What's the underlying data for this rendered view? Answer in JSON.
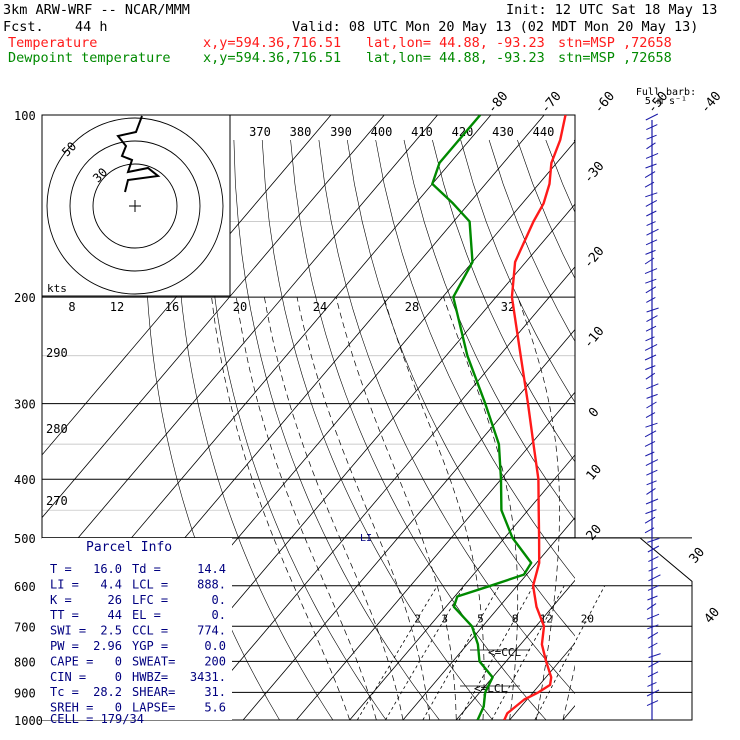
{
  "header": {
    "model": "3km ARW-WRF -- NCAR/MMM",
    "init": "Init: 12 UTC Sat 18 May 13",
    "fcst_label": "Fcst.",
    "fcst_value": "44 h",
    "valid": "Valid: 08 UTC Mon 20 May 13 (02 MDT Mon 20 May 13)",
    "temperature_label": "Temperature",
    "dewpoint_label": "Dewpoint temperature",
    "xy": "x,y=594.36,716.51",
    "latlon": "lat,lon= 44.88, -93.23",
    "station": "stn=MSP ,72658"
  },
  "colors": {
    "temperature": "#ff1a1a",
    "dewpoint": "#008a00",
    "wind": "#1a1aa8",
    "parcel": "#000080",
    "grid": "#000000"
  },
  "chart_data": {
    "type": "line",
    "subtype": "skew-t log-p sounding",
    "y_axis": {
      "scale": "log",
      "unit": "hPa",
      "range": [
        1000,
        100
      ],
      "ticks": [
        100,
        200,
        300,
        400,
        500,
        600,
        700,
        800,
        900,
        1000
      ]
    },
    "isotherm_labels_top": [
      -80,
      -70,
      -60,
      -50,
      -40
    ],
    "isotherm_labels_right": [
      -30,
      -20,
      -10,
      0,
      10,
      20,
      30,
      40
    ],
    "theta_e_labels": [
      370,
      380,
      390,
      400,
      410,
      420,
      430,
      440
    ],
    "dry_adiabat_labels": [
      290,
      280,
      270
    ],
    "mixing_ratio_labels": [
      "2",
      "3",
      "5",
      "8",
      "12",
      "20"
    ],
    "series": [
      {
        "name": "Temperature",
        "points": [
          {
            "p": 1000,
            "t": 19.0
          },
          {
            "p": 975,
            "t": 18.5
          },
          {
            "p": 950,
            "t": 19.0
          },
          {
            "p": 925,
            "t": 19.5
          },
          {
            "p": 900,
            "t": 21.0
          },
          {
            "p": 875,
            "t": 22.0
          },
          {
            "p": 850,
            "t": 21.0
          },
          {
            "p": 800,
            "t": 17.5
          },
          {
            "p": 750,
            "t": 14.0
          },
          {
            "p": 700,
            "t": 11.5
          },
          {
            "p": 650,
            "t": 7.0
          },
          {
            "p": 600,
            "t": 3.0
          },
          {
            "p": 550,
            "t": 0.5
          },
          {
            "p": 500,
            "t": -3.5
          },
          {
            "p": 450,
            "t": -8.0
          },
          {
            "p": 400,
            "t": -13.0
          },
          {
            "p": 350,
            "t": -19.5
          },
          {
            "p": 300,
            "t": -27.0
          },
          {
            "p": 250,
            "t": -36.0
          },
          {
            "p": 200,
            "t": -47.0
          },
          {
            "p": 175,
            "t": -52.0
          },
          {
            "p": 150,
            "t": -55.0
          },
          {
            "p": 140,
            "t": -56.0
          },
          {
            "p": 130,
            "t": -58.0
          },
          {
            "p": 120,
            "t": -61.0
          },
          {
            "p": 110,
            "t": -63.0
          },
          {
            "p": 100,
            "t": -66.0
          }
        ]
      },
      {
        "name": "Dewpoint temperature",
        "points": [
          {
            "p": 1000,
            "t": 14.0
          },
          {
            "p": 950,
            "t": 13.0
          },
          {
            "p": 900,
            "t": 11.0
          },
          {
            "p": 850,
            "t": 10.0
          },
          {
            "p": 800,
            "t": 5.0
          },
          {
            "p": 750,
            "t": 2.0
          },
          {
            "p": 700,
            "t": -2.0
          },
          {
            "p": 650,
            "t": -8.5
          },
          {
            "p": 625,
            "t": -9.5
          },
          {
            "p": 600,
            "t": -5.0
          },
          {
            "p": 575,
            "t": -0.5
          },
          {
            "p": 550,
            "t": -1.0
          },
          {
            "p": 500,
            "t": -8.5
          },
          {
            "p": 450,
            "t": -15.0
          },
          {
            "p": 400,
            "t": -20.0
          },
          {
            "p": 350,
            "t": -26.0
          },
          {
            "p": 300,
            "t": -35.0
          },
          {
            "p": 250,
            "t": -46.0
          },
          {
            "p": 200,
            "t": -58.0
          },
          {
            "p": 175,
            "t": -60.0
          },
          {
            "p": 150,
            "t": -67.0
          },
          {
            "p": 140,
            "t": -73.0
          },
          {
            "p": 130,
            "t": -80.0
          },
          {
            "p": 120,
            "t": -82.0
          },
          {
            "p": 110,
            "t": -82.0
          },
          {
            "p": 100,
            "t": -82.0
          }
        ]
      }
    ],
    "annotations": [
      "LI",
      "CCL",
      "LCL"
    ],
    "barb_scale_label": "Full barb:",
    "barb_scale_value": "5 m s⁻¹",
    "hodograph": {
      "units_label": "kts",
      "ring_labels": [
        "50",
        "30"
      ],
      "scale_labels": [
        "8",
        "12",
        "16",
        "20",
        "24",
        "28",
        "32"
      ]
    },
    "parcel_info": {
      "title": "Parcel Info",
      "rows": [
        {
          "k1": "T  =",
          "v1": "16.0",
          "k2": "Td =",
          "v2": "14.4"
        },
        {
          "k1": "LI =",
          "v1": "4.4",
          "k2": "LCL =",
          "v2": "888."
        },
        {
          "k1": "K  =",
          "v1": "26",
          "k2": "LFC =",
          "v2": "0."
        },
        {
          "k1": "TT =",
          "v1": "44",
          "k2": "EL =",
          "v2": "0."
        },
        {
          "k1": "SWI =",
          "v1": "2.5",
          "k2": "CCL =",
          "v2": "774."
        },
        {
          "k1": "PW =",
          "v1": "2.96",
          "k2": "YGP =",
          "v2": "0.0"
        },
        {
          "k1": "CAPE =",
          "v1": "0",
          "k2": "SWEAT=",
          "v2": "200"
        },
        {
          "k1": "CIN =",
          "v1": "0",
          "k2": "HWBZ=",
          "v2": "3431."
        },
        {
          "k1": "Tc =",
          "v1": "28.2",
          "k2": "SHEAR=",
          "v2": "31."
        },
        {
          "k1": "SREH =",
          "v1": "0",
          "k2": "LAPSE=",
          "v2": "5.6"
        }
      ],
      "cell": "CELL = 179/34"
    }
  }
}
